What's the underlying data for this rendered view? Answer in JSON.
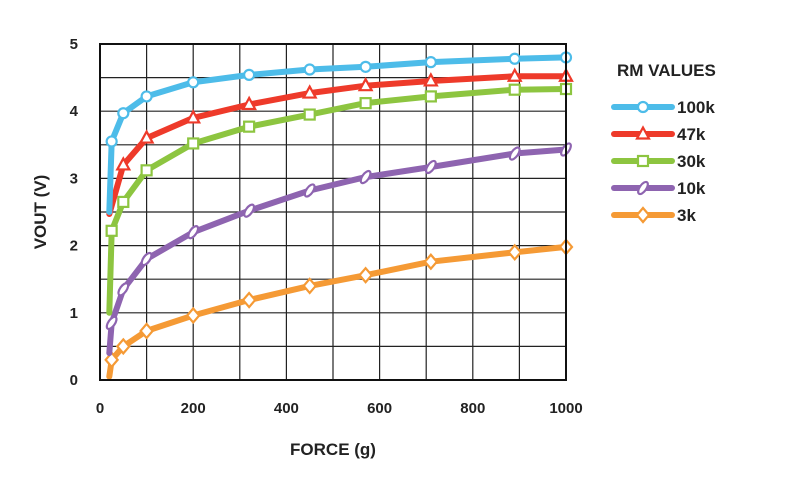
{
  "chart_data": {
    "type": "line",
    "xlabel": "FORCE (g)",
    "ylabel": "VOUT (V)",
    "xlim": [
      0,
      1000
    ],
    "ylim": [
      0,
      5
    ],
    "x_ticks": [
      "0",
      "200",
      "400",
      "600",
      "800",
      "1000"
    ],
    "y_ticks": [
      "0",
      "1",
      "2",
      "3",
      "4",
      "5"
    ],
    "grid": true,
    "legend_title": "RM VALUES",
    "legend_position": "right",
    "series": [
      {
        "name": "100k",
        "color": "#4dbce9",
        "marker": "circle",
        "points": [
          [
            20,
            2.5
          ],
          [
            25,
            3.55
          ],
          [
            50,
            3.97
          ],
          [
            100,
            4.22
          ],
          [
            200,
            4.43
          ],
          [
            320,
            4.54
          ],
          [
            450,
            4.62
          ],
          [
            570,
            4.66
          ],
          [
            710,
            4.73
          ],
          [
            890,
            4.78
          ],
          [
            1000,
            4.8
          ]
        ]
      },
      {
        "name": "47k",
        "color": "#ee3a2a",
        "marker": "triangle",
        "points": [
          [
            20,
            2.47
          ],
          [
            50,
            3.2
          ],
          [
            100,
            3.6
          ],
          [
            200,
            3.9
          ],
          [
            320,
            4.1
          ],
          [
            450,
            4.27
          ],
          [
            570,
            4.38
          ],
          [
            710,
            4.45
          ],
          [
            890,
            4.52
          ],
          [
            1000,
            4.52
          ]
        ]
      },
      {
        "name": "30k",
        "color": "#8dc540",
        "marker": "square",
        "points": [
          [
            20,
            1.0
          ],
          [
            25,
            2.22
          ],
          [
            50,
            2.65
          ],
          [
            100,
            3.12
          ],
          [
            200,
            3.52
          ],
          [
            320,
            3.77
          ],
          [
            450,
            3.95
          ],
          [
            570,
            4.12
          ],
          [
            710,
            4.22
          ],
          [
            890,
            4.32
          ],
          [
            1000,
            4.33
          ]
        ]
      },
      {
        "name": "10k",
        "color": "#8e64b0",
        "marker": "ellipse",
        "points": [
          [
            20,
            0.4
          ],
          [
            25,
            0.85
          ],
          [
            50,
            1.35
          ],
          [
            100,
            1.8
          ],
          [
            200,
            2.2
          ],
          [
            320,
            2.52
          ],
          [
            450,
            2.82
          ],
          [
            570,
            3.02
          ],
          [
            710,
            3.17
          ],
          [
            890,
            3.37
          ],
          [
            1000,
            3.43
          ]
        ]
      },
      {
        "name": "3k",
        "color": "#f59a35",
        "marker": "diamond",
        "points": [
          [
            20,
            0.05
          ],
          [
            25,
            0.3
          ],
          [
            50,
            0.5
          ],
          [
            100,
            0.73
          ],
          [
            200,
            0.96
          ],
          [
            320,
            1.19
          ],
          [
            450,
            1.4
          ],
          [
            570,
            1.56
          ],
          [
            710,
            1.76
          ],
          [
            890,
            1.9
          ],
          [
            1000,
            1.98
          ]
        ]
      }
    ]
  }
}
